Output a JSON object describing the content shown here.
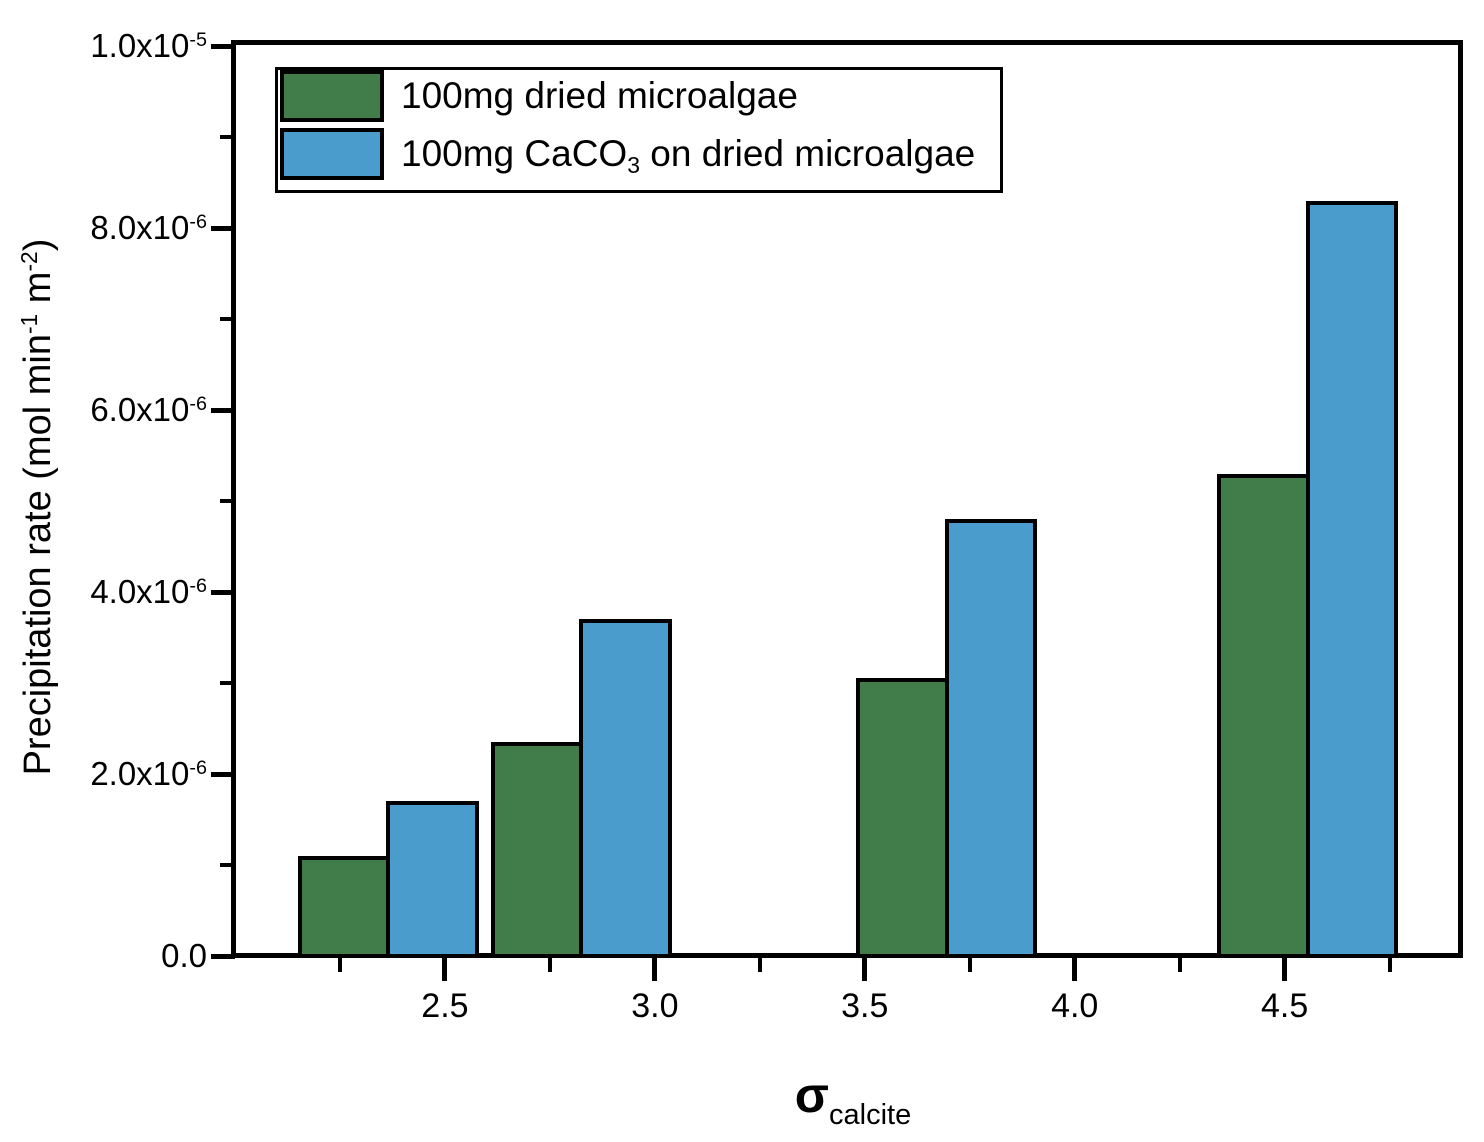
{
  "chart_data": {
    "type": "bar",
    "title": "",
    "xlabel": "sigma_calcite",
    "xlabel_parts": {
      "main": "σ",
      "subscript": "calcite"
    },
    "ylabel": "Precipitation rate (mol min^-1 m^-2)",
    "ylabel_parts": [
      {
        "text": "Precipitation rate (mol min",
        "style": "normal"
      },
      {
        "text": "-1",
        "style": "sup"
      },
      {
        "text": " m",
        "style": "normal"
      },
      {
        "text": "-2",
        "style": "sup"
      },
      {
        "text": ")",
        "style": "normal"
      }
    ],
    "categories_sigma": [
      2.37,
      2.83,
      3.7,
      4.56
    ],
    "bar_width_sigma": 0.22,
    "series": [
      {
        "key": "green",
        "name": "100mg dried microalgae",
        "color": "#407D4B",
        "values": [
          1.1e-06,
          2.35e-06,
          3.05e-06,
          5.3e-06
        ]
      },
      {
        "key": "blue",
        "name": "100mg CaCO3 on dried microalgae",
        "color": "#4A9CCD",
        "values": [
          1.7e-06,
          3.7e-06,
          4.8e-06,
          8.3e-06
        ]
      }
    ],
    "xlim": [
      2.0,
      4.92
    ],
    "ylim": [
      0,
      1e-05
    ],
    "grid": false,
    "legend_position": "top-left",
    "x_ticks_major": [
      {
        "value": 2.5,
        "label": "2.5"
      },
      {
        "value": 3.0,
        "label": "3.0"
      },
      {
        "value": 3.5,
        "label": "3.5"
      },
      {
        "value": 4.0,
        "label": "4.0"
      },
      {
        "value": 4.5,
        "label": "4.5"
      }
    ],
    "x_ticks_minor": [
      2.25,
      2.75,
      3.25,
      3.75,
      4.25,
      4.75
    ],
    "y_ticks_major": [
      {
        "value": 0,
        "mantissa": "0.0",
        "exponent": null
      },
      {
        "value": 2e-06,
        "mantissa": "2.0x10",
        "exponent": "-6"
      },
      {
        "value": 4e-06,
        "mantissa": "4.0x10",
        "exponent": "-6"
      },
      {
        "value": 6e-06,
        "mantissa": "6.0x10",
        "exponent": "-6"
      },
      {
        "value": 8e-06,
        "mantissa": "8.0x10",
        "exponent": "-6"
      },
      {
        "value": 1e-05,
        "mantissa": "1.0x10",
        "exponent": "-5"
      }
    ],
    "y_ticks_minor": [
      1e-06,
      3e-06,
      5e-06,
      7e-06,
      9e-06
    ],
    "legend_entries": [
      {
        "swatch_color": "#407D4B",
        "parts": [
          {
            "text": "100mg dried microalgae",
            "style": "normal"
          }
        ]
      },
      {
        "swatch_color": "#4A9CCD",
        "parts": [
          {
            "text": "100mg CaCO",
            "style": "normal"
          },
          {
            "text": "3",
            "style": "sub"
          },
          {
            "text": " on dried microalgae",
            "style": "normal"
          }
        ]
      }
    ],
    "colors": {
      "axis": "#000000",
      "background": "#FFFFFF"
    }
  }
}
